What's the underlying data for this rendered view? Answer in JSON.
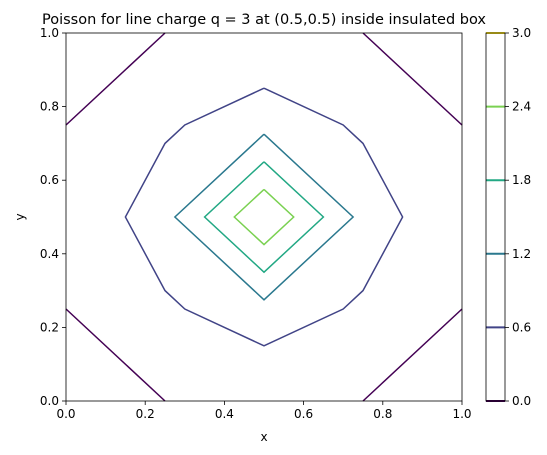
{
  "chart_data": {
    "type": "contour",
    "title": "Poisson for line charge q = 3 at (0.5,0.5) inside insulated box",
    "xlabel": "x",
    "ylabel": "y",
    "xlim": [
      0,
      1
    ],
    "ylim": [
      0,
      1
    ],
    "x_ticks": [
      "0.0",
      "0.2",
      "0.4",
      "0.6",
      "0.8",
      "1.0"
    ],
    "y_ticks": [
      "0.0",
      "0.2",
      "0.4",
      "0.6",
      "0.8",
      "1.0"
    ],
    "grid": false,
    "colorbar": {
      "placement": "right",
      "ticks": [
        "0.0",
        "0.6",
        "1.2",
        "1.8",
        "2.4",
        "3.0"
      ],
      "levels": [
        0.0,
        0.6,
        1.2,
        1.8,
        2.4,
        3.0
      ],
      "colors": [
        "#440154",
        "#414487",
        "#2a788e",
        "#22a884",
        "#7ad151",
        "#fde725"
      ]
    },
    "contours": [
      {
        "level": 0.0,
        "color": "#440154",
        "paths": [
          [
            [
              0.0,
              0.75
            ],
            [
              0.25,
              1.0
            ]
          ],
          [
            [
              0.75,
              1.0
            ],
            [
              1.0,
              0.75
            ]
          ],
          [
            [
              0.0,
              0.25
            ],
            [
              0.25,
              0.0
            ]
          ],
          [
            [
              0.75,
              0.0
            ],
            [
              1.0,
              0.25
            ]
          ]
        ]
      },
      {
        "level": 0.6,
        "color": "#414487",
        "paths": [
          [
            [
              0.5,
              0.85
            ],
            [
              0.7,
              0.75
            ],
            [
              0.75,
              0.7
            ],
            [
              0.85,
              0.5
            ],
            [
              0.75,
              0.3
            ],
            [
              0.7,
              0.25
            ],
            [
              0.5,
              0.15
            ],
            [
              0.3,
              0.25
            ],
            [
              0.25,
              0.3
            ],
            [
              0.15,
              0.5
            ],
            [
              0.25,
              0.7
            ],
            [
              0.3,
              0.75
            ],
            [
              0.5,
              0.85
            ]
          ]
        ]
      },
      {
        "level": 1.2,
        "color": "#2a788e",
        "paths": [
          [
            [
              0.5,
              0.725
            ],
            [
              0.725,
              0.5
            ],
            [
              0.5,
              0.275
            ],
            [
              0.275,
              0.5
            ],
            [
              0.5,
              0.725
            ]
          ]
        ]
      },
      {
        "level": 1.8,
        "color": "#22a884",
        "paths": [
          [
            [
              0.5,
              0.65
            ],
            [
              0.65,
              0.5
            ],
            [
              0.5,
              0.35
            ],
            [
              0.35,
              0.5
            ],
            [
              0.5,
              0.65
            ]
          ]
        ]
      },
      {
        "level": 2.4,
        "color": "#7ad151",
        "paths": [
          [
            [
              0.5,
              0.575
            ],
            [
              0.575,
              0.5
            ],
            [
              0.5,
              0.425
            ],
            [
              0.425,
              0.5
            ],
            [
              0.5,
              0.575
            ]
          ]
        ]
      }
    ]
  }
}
